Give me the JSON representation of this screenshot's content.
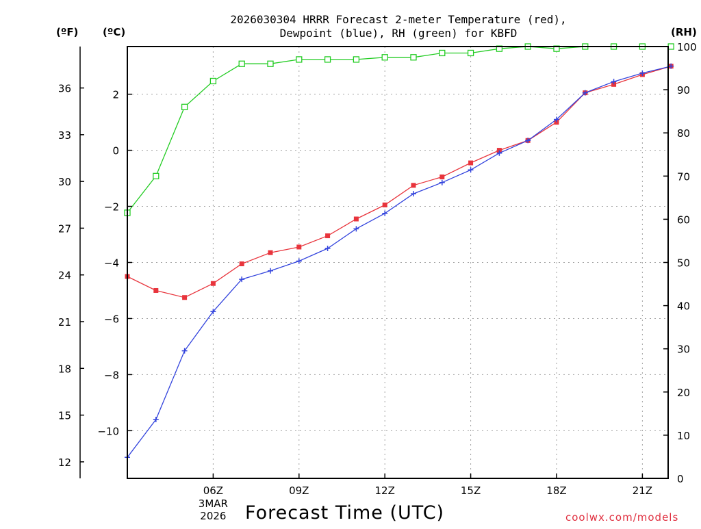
{
  "chart_data": {
    "type": "line",
    "title_line1": "2026030304 HRRR Forecast 2-meter Temperature (red),",
    "title_line2": "Dewpoint (blue), RH (green) for KBFD",
    "xlabel": "Forecast Time (UTC)",
    "credit": "coolwx.com/models",
    "unit_left_f": "(ºF)",
    "unit_left_c": "(ºC)",
    "unit_right": "(RH)",
    "x_hours": [
      3,
      4,
      5,
      6,
      7,
      8,
      9,
      10,
      11,
      12,
      13,
      14,
      15,
      16,
      17,
      18,
      19,
      20,
      21,
      22
    ],
    "xlim": [
      3,
      21.9
    ],
    "x_ticks": [
      {
        "hour": 6,
        "label": "06Z",
        "date": "3MAR",
        "year": "2026"
      },
      {
        "hour": 9,
        "label": "09Z"
      },
      {
        "hour": 12,
        "label": "12Z"
      },
      {
        "hour": 15,
        "label": "15Z"
      },
      {
        "hour": 18,
        "label": "18Z"
      },
      {
        "hour": 21,
        "label": "21Z"
      }
    ],
    "ylim_c": [
      -11.7,
      3.7
    ],
    "y_ticks_c": [
      {
        "value": 2,
        "label": "2"
      },
      {
        "value": 0,
        "label": "0"
      },
      {
        "value": -2,
        "label": "−2"
      },
      {
        "value": -4,
        "label": "−4"
      },
      {
        "value": -6,
        "label": "−6"
      },
      {
        "value": -8,
        "label": "−8"
      },
      {
        "value": -10,
        "label": "−10"
      }
    ],
    "y_ticks_f": [
      {
        "value": 36,
        "label": "36"
      },
      {
        "value": 33,
        "label": "33"
      },
      {
        "value": 30,
        "label": "30"
      },
      {
        "value": 27,
        "label": "27"
      },
      {
        "value": 24,
        "label": "24"
      },
      {
        "value": 21,
        "label": "21"
      },
      {
        "value": 18,
        "label": "18"
      },
      {
        "value": 15,
        "label": "15"
      },
      {
        "value": 12,
        "label": "12"
      }
    ],
    "ylim_rh": [
      0,
      100
    ],
    "y_ticks_rh": [
      {
        "value": 100,
        "label": "100"
      },
      {
        "value": 90,
        "label": "90"
      },
      {
        "value": 80,
        "label": "80"
      },
      {
        "value": 70,
        "label": "70"
      },
      {
        "value": 60,
        "label": "60"
      },
      {
        "value": 50,
        "label": "50"
      },
      {
        "value": 40,
        "label": "40"
      },
      {
        "value": 30,
        "label": "30"
      },
      {
        "value": 20,
        "label": "20"
      },
      {
        "value": 10,
        "label": "10"
      },
      {
        "value": 0,
        "label": "0"
      }
    ],
    "series": [
      {
        "name": "Temperature",
        "axis": "C",
        "color": "#e8343c",
        "marker": "filled-square",
        "values": [
          -4.5,
          -5.0,
          -5.25,
          -4.75,
          -4.05,
          -3.65,
          -3.45,
          -3.05,
          -2.45,
          -1.95,
          -1.25,
          -0.95,
          -0.45,
          0.0,
          0.35,
          1.0,
          2.05,
          2.35,
          2.7,
          3.0
        ]
      },
      {
        "name": "Dewpoint",
        "axis": "C",
        "color": "#3344dd",
        "marker": "plus",
        "values": [
          -10.95,
          -9.6,
          -7.15,
          -5.75,
          -4.6,
          -4.3,
          -3.95,
          -3.5,
          -2.8,
          -2.25,
          -1.55,
          -1.15,
          -0.7,
          -0.1,
          0.35,
          1.1,
          2.05,
          2.45,
          2.75,
          3.0
        ]
      },
      {
        "name": "RH",
        "axis": "RH",
        "color": "#22cc22",
        "marker": "open-square",
        "values": [
          61.5,
          70,
          86,
          92,
          96,
          96,
          97,
          97,
          97,
          97.5,
          97.5,
          98.5,
          98.5,
          99.5,
          100,
          99.5,
          100,
          100,
          100,
          100
        ]
      }
    ]
  }
}
